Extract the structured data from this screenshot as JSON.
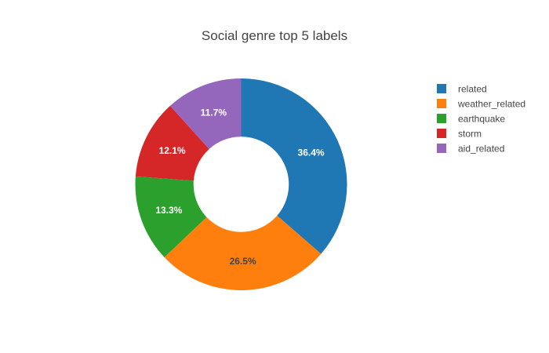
{
  "chart_data": {
    "type": "pie",
    "title": "Social genre top 5 labels",
    "hole": 0.45,
    "legend_position": "top-right",
    "categories": [
      "related",
      "weather_related",
      "earthquake",
      "storm",
      "aid_related"
    ],
    "values": [
      36.4,
      26.5,
      13.3,
      12.1,
      11.7
    ],
    "labels": [
      "36.4%",
      "26.5%",
      "13.3%",
      "12.1%",
      "11.7%"
    ],
    "colors": [
      "#1f77b4",
      "#ff7f0e",
      "#2ca02c",
      "#d62728",
      "#9467bd"
    ],
    "label_colors": [
      "#ffffff",
      "#444444",
      "#ffffff",
      "#ffffff",
      "#ffffff"
    ]
  }
}
